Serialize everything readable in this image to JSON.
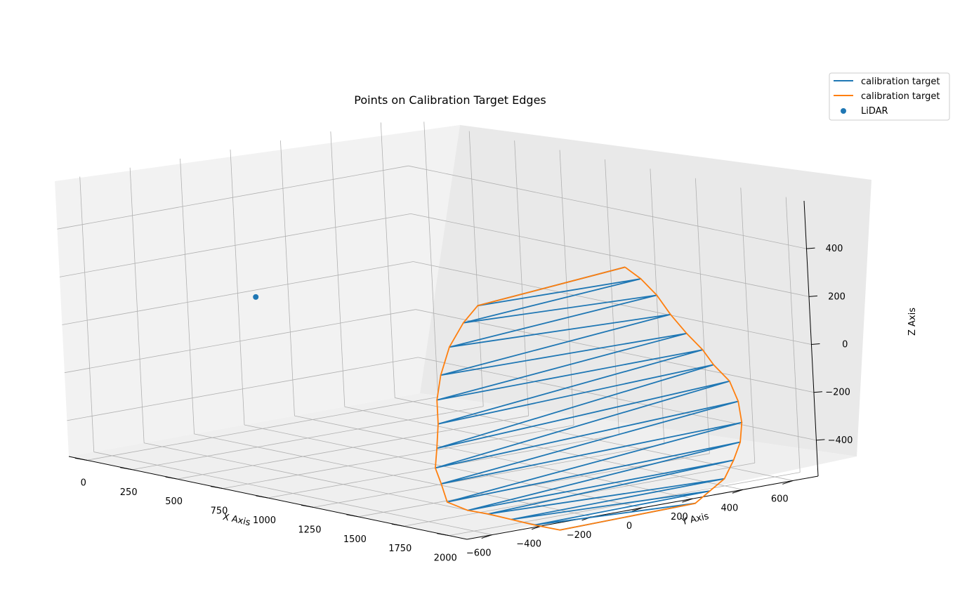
{
  "chart_data": {
    "type": "line3d",
    "title": "Points on Calibration Target Edges",
    "xlabel": "X Axis",
    "ylabel": "Y Axis",
    "zlabel": "Z Axis",
    "xlim": [
      -100,
      2100
    ],
    "ylim": [
      -700,
      700
    ],
    "zlim": [
      -550,
      600
    ],
    "x_ticks": [
      0,
      250,
      500,
      750,
      1000,
      1250,
      1500,
      1750,
      2000
    ],
    "x_tick_labels": [
      "0",
      "250",
      "500",
      "750",
      "1000",
      "1250",
      "1500",
      "1750",
      "2000"
    ],
    "y_ticks": [
      -600,
      -400,
      -200,
      0,
      200,
      400,
      600
    ],
    "y_tick_labels": [
      "−600",
      "−400",
      "−200",
      "0",
      "200",
      "400",
      "600"
    ],
    "z_ticks": [
      -400,
      -200,
      0,
      200,
      400
    ],
    "z_tick_labels": [
      "−400",
      "−200",
      "0",
      "200",
      "400"
    ],
    "grid": true,
    "legend": {
      "position": "top-right",
      "entries": [
        {
          "label": "calibration target",
          "kind": "line",
          "color": "#1f77b4"
        },
        {
          "label": "calibration target",
          "kind": "line",
          "color": "#ff7f0e"
        },
        {
          "label": "LiDAR",
          "kind": "point",
          "color": "#1f77b4"
        }
      ]
    },
    "series": [
      {
        "name": "calibration target",
        "kind": "zigzag",
        "color": "#1f77b4",
        "points": [
          [
            2000,
            50,
            430
          ],
          [
            2000,
            -540,
            380
          ],
          [
            2000,
            110,
            370
          ],
          [
            2000,
            -600,
            320
          ],
          [
            2000,
            170,
            290
          ],
          [
            2000,
            -660,
            230
          ],
          [
            2000,
            220,
            200
          ],
          [
            2000,
            -700,
            120
          ],
          [
            2000,
            280,
            110
          ],
          [
            2000,
            -720,
            20
          ],
          [
            2000,
            340,
            30
          ],
          [
            2000,
            -720,
            -80
          ],
          [
            2000,
            380,
            -40
          ],
          [
            2000,
            -730,
            -180
          ],
          [
            2000,
            440,
            -120
          ],
          [
            2000,
            -740,
            -260
          ],
          [
            2000,
            470,
            -210
          ],
          [
            2000,
            -720,
            -330
          ],
          [
            2000,
            480,
            -300
          ],
          [
            2000,
            -700,
            -410
          ],
          [
            2000,
            470,
            -380
          ],
          [
            2000,
            -620,
            -460
          ],
          [
            2000,
            440,
            -450
          ],
          [
            2000,
            -540,
            -490
          ],
          [
            2000,
            400,
            -520
          ],
          [
            2000,
            -450,
            -530
          ],
          [
            2000,
            340,
            -560
          ],
          [
            2000,
            -360,
            -570
          ],
          [
            2000,
            280,
            -600
          ],
          [
            2000,
            -260,
            -610
          ]
        ]
      },
      {
        "name": "calibration target",
        "kind": "outline",
        "color": "#ff7f0e",
        "points": [
          [
            2000,
            50,
            430
          ],
          [
            2000,
            110,
            370
          ],
          [
            2000,
            170,
            290
          ],
          [
            2000,
            220,
            200
          ],
          [
            2000,
            280,
            110
          ],
          [
            2000,
            340,
            30
          ],
          [
            2000,
            380,
            -40
          ],
          [
            2000,
            440,
            -120
          ],
          [
            2000,
            470,
            -210
          ],
          [
            2000,
            480,
            -300
          ],
          [
            2000,
            470,
            -380
          ],
          [
            2000,
            440,
            -450
          ],
          [
            2000,
            400,
            -520
          ],
          [
            2000,
            340,
            -560
          ],
          [
            2000,
            280,
            -600
          ],
          [
            2000,
            -260,
            -610
          ],
          [
            2000,
            -360,
            -570
          ],
          [
            2000,
            -450,
            -530
          ],
          [
            2000,
            -540,
            -490
          ],
          [
            2000,
            -620,
            -460
          ],
          [
            2000,
            -700,
            -410
          ],
          [
            2000,
            -720,
            -330
          ],
          [
            2000,
            -740,
            -260
          ],
          [
            2000,
            -730,
            -180
          ],
          [
            2000,
            -720,
            -80
          ],
          [
            2000,
            -720,
            20
          ],
          [
            2000,
            -700,
            120
          ],
          [
            2000,
            -660,
            230
          ],
          [
            2000,
            -600,
            320
          ],
          [
            2000,
            -540,
            380
          ],
          [
            2000,
            50,
            430
          ]
        ]
      }
    ],
    "scatter": {
      "name": "LiDAR",
      "color": "#1f77b4",
      "points": [
        [
          0,
          0,
          0
        ]
      ]
    }
  }
}
